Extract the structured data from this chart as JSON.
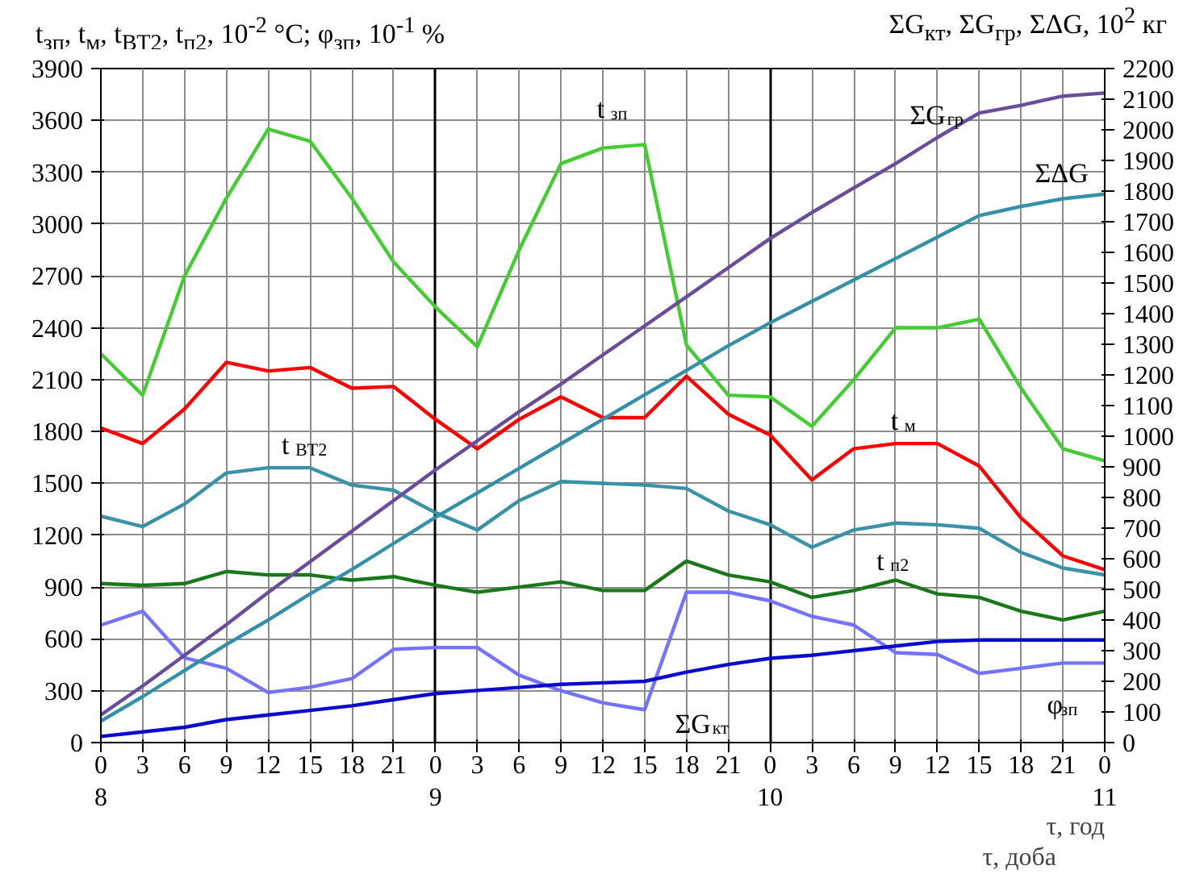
{
  "chart_data": {
    "type": "line",
    "ylabel": "t$_{зп}$, t$_{м}$, t$_{ВТ2}$, t$_{п2}$, 10$^{-2}$ °C; φ$_{зп}$, 10$^{-1}$ %",
    "y2label": "ΣG$_{кт}$, ΣG$_{гр}$, ΣΔG, 10$^{2}$ кг",
    "xlabel": "τ, год",
    "x2label": "τ, доба",
    "categories": [
      "0",
      "3",
      "6",
      "9",
      "12",
      "15",
      "18",
      "21",
      "0",
      "3",
      "6",
      "9",
      "12",
      "15",
      "18",
      "21",
      "0",
      "3",
      "6",
      "9",
      "12",
      "15",
      "18",
      "21",
      "0"
    ],
    "x2lim": [
      8,
      11
    ],
    "x2ticks": [
      8,
      9,
      10,
      11
    ],
    "ylim": [
      0,
      3900
    ],
    "yticks": [
      0,
      300,
      600,
      900,
      1200,
      1500,
      1800,
      2100,
      2400,
      2700,
      3000,
      3300,
      3600,
      3900
    ],
    "y2lim": [
      0,
      2200
    ],
    "y2ticks": [
      0,
      100,
      200,
      300,
      400,
      500,
      600,
      700,
      800,
      900,
      1000,
      1100,
      1200,
      1300,
      1400,
      1500,
      1600,
      1700,
      1800,
      1900,
      2000,
      2100,
      2200
    ],
    "grid": true,
    "series": [
      {
        "name": "t$_{зп}$",
        "color": "#44cc33",
        "values": [
          2250,
          2010,
          2700,
          3150,
          3550,
          3480,
          3150,
          2780,
          2520,
          2290,
          2850,
          3350,
          3440,
          3460,
          2300,
          2010,
          2000,
          1830,
          2100,
          2400,
          2400,
          2450,
          2050,
          1700,
          1630
        ]
      },
      {
        "name": "t$_{м}$",
        "color": "#ff0000",
        "values": [
          1820,
          1730,
          1930,
          2200,
          2150,
          2170,
          2050,
          2060,
          1870,
          1700,
          1870,
          2000,
          1880,
          1880,
          2120,
          1900,
          1780,
          1520,
          1700,
          1730,
          1730,
          1600,
          1300,
          1080,
          1000
        ]
      },
      {
        "name": "t$_{ВТ2}$",
        "color": "#3a92a8",
        "values": [
          1310,
          1250,
          1380,
          1560,
          1590,
          1590,
          1490,
          1460,
          1330,
          1230,
          1400,
          1510,
          1500,
          1490,
          1470,
          1340,
          1260,
          1130,
          1230,
          1270,
          1260,
          1240,
          1100,
          1010,
          970
        ]
      },
      {
        "name": "t$_{п2}$",
        "color": "#1a781a",
        "values": [
          920,
          910,
          920,
          990,
          970,
          970,
          940,
          960,
          910,
          870,
          900,
          930,
          880,
          880,
          1050,
          970,
          930,
          840,
          880,
          940,
          860,
          840,
          760,
          710,
          760
        ]
      },
      {
        "name": "φ$_{зп}$",
        "color": "#7373ff",
        "values": [
          680,
          760,
          490,
          430,
          290,
          320,
          370,
          540,
          550,
          550,
          390,
          300,
          230,
          190,
          870,
          870,
          820,
          730,
          680,
          520,
          510,
          400,
          430,
          460,
          460
        ]
      },
      {
        "name": "ΣG$_{кт}$",
        "color": "#0a0acc",
        "axis": "y2",
        "values": [
          20,
          35,
          50,
          75,
          90,
          105,
          120,
          140,
          160,
          170,
          180,
          190,
          195,
          200,
          230,
          255,
          275,
          285,
          300,
          315,
          330,
          335,
          335,
          335,
          335
        ]
      },
      {
        "name": "ΣG$_{гр}$",
        "color": "#6a4c9c",
        "axis": "y2",
        "values": [
          90,
          185,
          285,
          385,
          490,
          590,
          690,
          790,
          890,
          985,
          1080,
          1170,
          1265,
          1360,
          1455,
          1550,
          1645,
          1730,
          1810,
          1890,
          1975,
          2055,
          2080,
          2110,
          2120
        ]
      },
      {
        "name": "ΣΔG",
        "color": "#3390a8",
        "axis": "y2",
        "values": [
          70,
          150,
          235,
          320,
          400,
          485,
          565,
          650,
          735,
          815,
          895,
          975,
          1055,
          1135,
          1215,
          1295,
          1370,
          1440,
          1510,
          1580,
          1650,
          1720,
          1750,
          1775,
          1790
        ]
      }
    ]
  }
}
